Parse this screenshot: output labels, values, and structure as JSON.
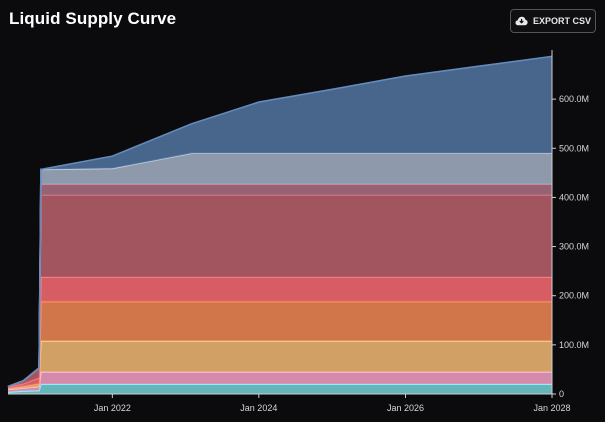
{
  "header": {
    "title": "Liquid Supply Curve",
    "export_label": "EXPORT CSV",
    "export_icon": "cloud-download-icon"
  },
  "chart_data": {
    "type": "area",
    "title": "Liquid Supply Curve",
    "xlabel": "",
    "ylabel": "",
    "x_range": [
      "2020-07-30",
      "2028-01-01"
    ],
    "ylim": [
      0,
      700000000
    ],
    "y_ticks": [
      {
        "value": 0,
        "label": "0"
      },
      {
        "value": 100000000,
        "label": "100.0M"
      },
      {
        "value": 200000000,
        "label": "200.0M"
      },
      {
        "value": 300000000,
        "label": "300.0M"
      },
      {
        "value": 400000000,
        "label": "400.0M"
      },
      {
        "value": 500000000,
        "label": "500.0M"
      },
      {
        "value": 600000000,
        "label": "600.0M"
      }
    ],
    "x_ticks": [
      {
        "value": "2022-01-01",
        "label": "Jan 2022"
      },
      {
        "value": "2024-01-01",
        "label": "Jan 2024"
      },
      {
        "value": "2026-01-01",
        "label": "Jan 2026"
      },
      {
        "value": "2028-01-01",
        "label": "Jan 2028"
      }
    ],
    "y_axis_position": "right",
    "grid": false,
    "legend": "none",
    "stacked": true,
    "series": [
      {
        "color": "#6ec6c9",
        "points": [
          [
            "2020-07-30",
            4000000
          ],
          [
            "2020-10-15",
            6000000
          ],
          [
            "2021-01-01",
            7000000
          ],
          [
            "2021-01-10",
            20000000
          ],
          [
            "2028-01-01",
            20000000
          ]
        ]
      },
      {
        "color": "#e596b9",
        "points": [
          [
            "2020-07-30",
            5000000
          ],
          [
            "2020-10-15",
            6000000
          ],
          [
            "2021-01-01",
            8000000
          ],
          [
            "2021-01-10",
            25000000
          ],
          [
            "2028-01-01",
            25000000
          ]
        ]
      },
      {
        "color": "#e3ae6c",
        "points": [
          [
            "2020-07-30",
            3000000
          ],
          [
            "2020-10-15",
            4000000
          ],
          [
            "2021-01-01",
            6000000
          ],
          [
            "2021-01-10",
            63000000
          ],
          [
            "2028-01-01",
            63000000
          ]
        ]
      },
      {
        "color": "#e3804f",
        "points": [
          [
            "2020-07-30",
            0
          ],
          [
            "2021-01-01",
            0
          ],
          [
            "2021-01-10",
            80000000
          ],
          [
            "2028-01-01",
            80000000
          ]
        ]
      },
      {
        "color": "#e7656a",
        "points": [
          [
            "2020-07-30",
            3000000
          ],
          [
            "2020-10-15",
            5000000
          ],
          [
            "2021-01-01",
            12000000
          ],
          [
            "2021-01-10",
            50000000
          ],
          [
            "2028-01-01",
            50000000
          ]
        ]
      },
      {
        "color": "#b05c66",
        "points": [
          [
            "2020-07-30",
            0
          ],
          [
            "2020-10-15",
            6000000
          ],
          [
            "2021-01-01",
            20000000
          ],
          [
            "2021-01-10",
            167000000
          ],
          [
            "2028-01-01",
            167000000
          ]
        ]
      },
      {
        "color": "#a56a7e",
        "points": [
          [
            "2020-07-30",
            0
          ],
          [
            "2021-01-01",
            0
          ],
          [
            "2021-01-10",
            22000000
          ],
          [
            "2028-01-01",
            22000000
          ]
        ]
      },
      {
        "color": "#9aa6b8",
        "points": [
          [
            "2020-07-30",
            0
          ],
          [
            "2021-01-01",
            0
          ],
          [
            "2021-01-10",
            30000000
          ],
          [
            "2022-01-01",
            32000000
          ],
          [
            "2023-02-01",
            63000000
          ],
          [
            "2028-01-01",
            63000000
          ]
        ]
      },
      {
        "color": "#4e6e96",
        "points": [
          [
            "2020-07-30",
            0
          ],
          [
            "2021-01-01",
            0
          ],
          [
            "2021-01-10",
            0
          ],
          [
            "2022-01-01",
            25000000
          ],
          [
            "2023-02-01",
            60000000
          ],
          [
            "2024-01-01",
            104000000
          ],
          [
            "2025-01-01",
            130000000
          ],
          [
            "2026-01-01",
            157000000
          ],
          [
            "2027-01-01",
            177000000
          ],
          [
            "2028-01-01",
            197000000
          ]
        ]
      }
    ]
  }
}
